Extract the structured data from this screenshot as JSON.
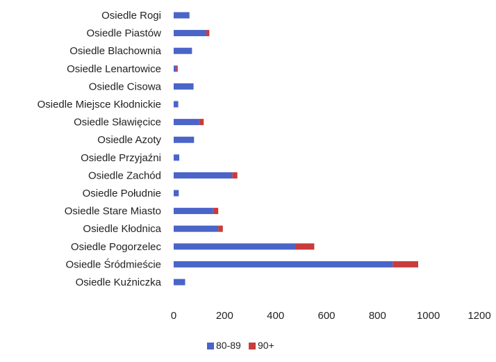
{
  "chart_data": {
    "type": "bar",
    "orientation": "horizontal",
    "stacked": true,
    "categories": [
      "Osiedle Rogi",
      "Osiedle Piastów",
      "Osiedle Blachownia",
      "Osiedle Lenartowice",
      "Osiedle Cisowa",
      "Osiedle Miejsce Kłodnickie",
      "Osiedle Sławięcice",
      "Osiedle Azoty",
      "Osiedle Przyjaźni",
      "Osiedle Zachód",
      "Osiedle Południe",
      "Osiedle Stare Miasto",
      "Osiedle Kłodnica",
      "Osiedle Pogorzelec",
      "Osiedle Śródmieście",
      "Osiedle Kuźniczka"
    ],
    "series": [
      {
        "name": "80-89",
        "color": "#4a64c8",
        "values": [
          62,
          128,
          72,
          10,
          78,
          18,
          100,
          80,
          22,
          230,
          20,
          155,
          175,
          480,
          860,
          45
        ]
      },
      {
        "name": "90+",
        "color": "#c83c3c",
        "values": [
          0,
          12,
          0,
          6,
          0,
          0,
          18,
          0,
          0,
          20,
          0,
          20,
          18,
          72,
          100,
          0
        ]
      }
    ],
    "xticks": [
      "0",
      "200",
      "400",
      "600",
      "800",
      "1000",
      "1200"
    ],
    "xlim": [
      0,
      1200
    ],
    "grid": false,
    "legend_position": "bottom"
  }
}
